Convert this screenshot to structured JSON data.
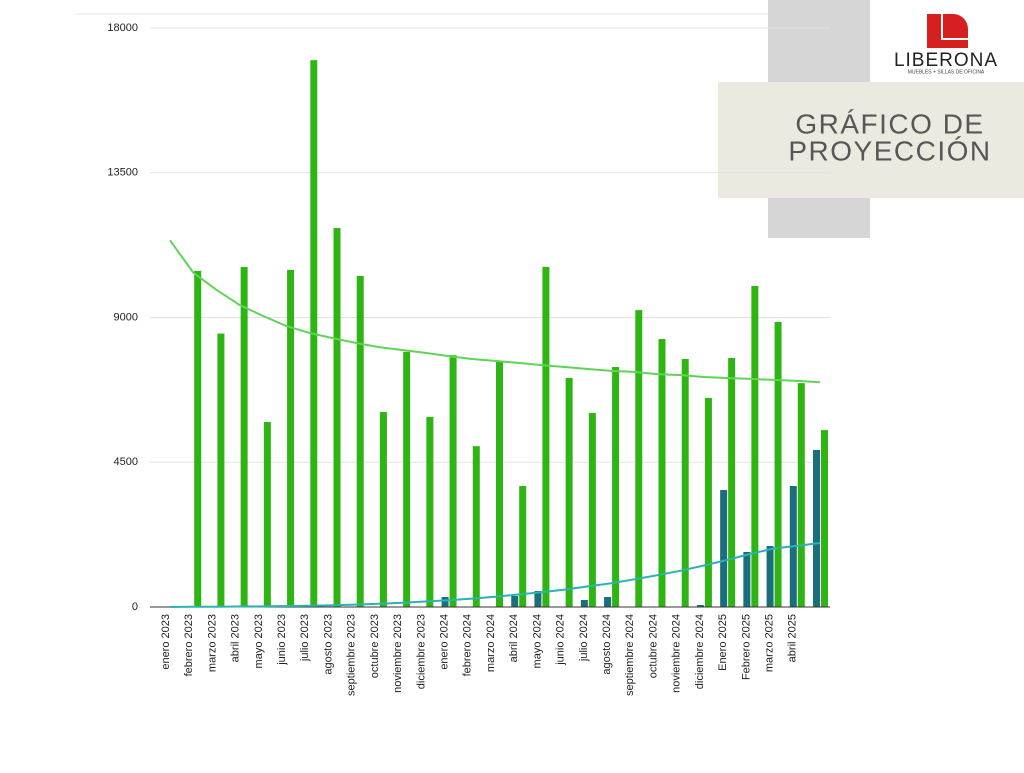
{
  "slide": {
    "title_lines": [
      "GRÁFICO DE",
      "PROYECCIÓN"
    ],
    "logo_name": "LIBERONA",
    "logo_tagline": "MUEBLES + SILLAS DE OFICINA"
  },
  "chart_data": {
    "type": "bar",
    "categories": [
      "enero 2023",
      "febrero 2023",
      "marzo 2023",
      "abril 2023",
      "mayo 2023",
      "junio 2023",
      "julio 2023",
      "agosto 2023",
      "septiembre 2023",
      "octubre 2023",
      "noviembre 2023",
      "diciembre 2023",
      "enero 2024",
      "febrero 2024",
      "marzo 2024",
      "abril 2024",
      "mayo 2024",
      "junio 2024",
      "julio 2024",
      "agosto 2024",
      "septiembre 2024",
      "octubre 2024",
      "noviembre 2024",
      "diciembre 2024",
      "Enero 2025",
      "Febrero 2025",
      "marzo 2025",
      "abril 2025",
      null
    ],
    "series": [
      {
        "color": "#1b6f7c",
        "values": [
          0,
          0,
          0,
          0,
          0,
          0,
          0,
          0,
          0,
          0,
          0,
          0,
          311,
          0,
          0,
          342,
          497,
          0,
          218,
          311,
          0,
          0,
          0,
          62,
          3637,
          1710,
          1896,
          3762,
          4881
        ]
      },
      {
        "color": "#2fb513",
        "values": [
          0,
          10450,
          8500,
          10570,
          5750,
          10480,
          17000,
          11780,
          10290,
          6060,
          7930,
          5910,
          7830,
          5000,
          7650,
          3760,
          10570,
          7120,
          6030,
          7460,
          9230,
          8330,
          7710,
          6500,
          7740,
          9980,
          8860,
          6960,
          5500
        ]
      },
      {
        "type": "line",
        "color": "#5fd458",
        "values": [
          11400,
          10400,
          9860,
          9390,
          9050,
          8740,
          8520,
          8360,
          8210,
          8080,
          7990,
          7900,
          7800,
          7710,
          7650,
          7590,
          7520,
          7460,
          7400,
          7340,
          7310,
          7240,
          7210,
          7150,
          7120,
          7090,
          7060,
          7030,
          6990
        ]
      },
      {
        "type": "line",
        "color": "#2bb3b1",
        "values": [
          0,
          5,
          10,
          15,
          20,
          30,
          40,
          55,
          75,
          100,
          130,
          170,
          210,
          260,
          320,
          390,
          460,
          540,
          640,
          740,
          860,
          990,
          1130,
          1290,
          1460,
          1650,
          1820,
          1900,
          1990
        ]
      }
    ],
    "ylim": [
      0,
      18000
    ],
    "yticks": [
      0,
      4500,
      9000,
      13500,
      18000
    ],
    "grid": true
  }
}
